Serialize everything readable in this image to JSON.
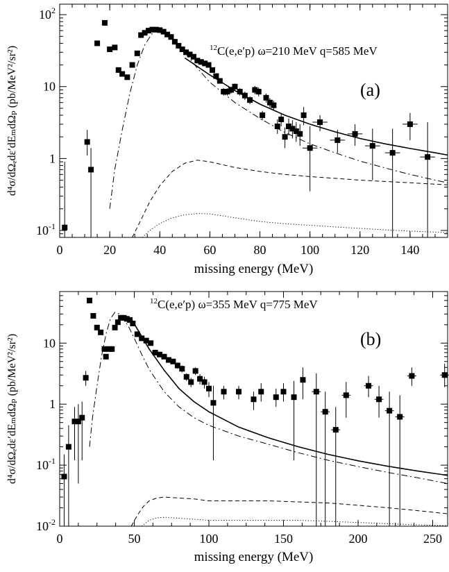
{
  "chart_data": [
    {
      "type": "scatter",
      "panel_label": "(a)",
      "title_nucleus": "12",
      "title_main": "C(e,e′p) ω=210 MeV q=585 MeV",
      "xlabel": "missing energy (MeV)",
      "ylabel": "d⁴σ/dΩₑdε′dEₘdΩₚ (pb/MeV²/sr²)",
      "xlim": [
        0,
        155
      ],
      "ylim": [
        0.08,
        140
      ],
      "log_y": true,
      "x_ticks": [
        0,
        20,
        40,
        60,
        80,
        100,
        120,
        140
      ],
      "x_tick_labels": [
        "0",
        "20",
        "40",
        "60",
        "80",
        "100",
        "120",
        "140"
      ],
      "y_ticks": [
        0.1,
        1,
        10,
        100
      ],
      "y_tick_labels": [
        {
          "base": "10",
          "exp": "-1"
        },
        {
          "base": "1",
          "exp": ""
        },
        {
          "base": "10",
          "exp": ""
        },
        {
          "base": "10",
          "exp": "2"
        }
      ],
      "data_points": [
        {
          "x": 2,
          "y": 0.11,
          "lo": 0.08,
          "hi": 0.9
        },
        {
          "x": 11,
          "y": 1.7,
          "lo": 1.1,
          "hi": 2.5
        },
        {
          "x": 12.5,
          "y": 0.7,
          "lo": 0.08,
          "hi": 1.4
        },
        {
          "x": 15,
          "y": 40
        },
        {
          "x": 18,
          "y": 77
        },
        {
          "x": 20,
          "y": 33
        },
        {
          "x": 22,
          "y": 35
        },
        {
          "x": 23.5,
          "y": 17
        },
        {
          "x": 25,
          "y": 15
        },
        {
          "x": 27,
          "y": 13.5
        },
        {
          "x": 29,
          "y": 20
        },
        {
          "x": 31,
          "y": 29
        },
        {
          "x": 32.5,
          "y": 52
        },
        {
          "x": 34,
          "y": 56
        },
        {
          "x": 35.5,
          "y": 60
        },
        {
          "x": 37,
          "y": 62
        },
        {
          "x": 38.5,
          "y": 62
        },
        {
          "x": 40,
          "y": 61
        },
        {
          "x": 41.5,
          "y": 58
        },
        {
          "x": 43,
          "y": 53
        },
        {
          "x": 44.5,
          "y": 49
        },
        {
          "x": 46,
          "y": 42
        },
        {
          "x": 47.5,
          "y": 37
        },
        {
          "x": 49,
          "y": 33
        },
        {
          "x": 50.5,
          "y": 30
        },
        {
          "x": 52,
          "y": 28
        },
        {
          "x": 53.5,
          "y": 26
        },
        {
          "x": 55,
          "y": 23
        },
        {
          "x": 56.5,
          "y": 22
        },
        {
          "x": 58,
          "y": 21
        },
        {
          "x": 59.5,
          "y": 20
        },
        {
          "x": 61,
          "y": 17
        },
        {
          "x": 62.5,
          "y": 14
        },
        {
          "x": 64,
          "y": 12
        },
        {
          "x": 65.5,
          "y": 8.5,
          "lo": 7.5,
          "hi": 9.5
        },
        {
          "x": 67,
          "y": 8.5,
          "lo": 7.5,
          "hi": 9.5
        },
        {
          "x": 68.5,
          "y": 9,
          "lo": 8,
          "hi": 10
        },
        {
          "x": 70,
          "y": 10,
          "lo": 9,
          "hi": 11
        },
        {
          "x": 72,
          "y": 8.5,
          "lo": 7.5,
          "hi": 9.5
        },
        {
          "x": 74,
          "y": 7.5,
          "lo": 6.5,
          "hi": 8.5
        },
        {
          "x": 76,
          "y": 6.5,
          "lo": 5.7,
          "hi": 7.3
        },
        {
          "x": 78,
          "y": 9,
          "lo": 7.8,
          "hi": 10.2
        },
        {
          "x": 79.5,
          "y": 8.5,
          "lo": 7.3,
          "hi": 9.7
        },
        {
          "x": 81,
          "y": 4,
          "lo": 3.4,
          "hi": 4.6
        },
        {
          "x": 82.5,
          "y": 7,
          "lo": 6,
          "hi": 8
        },
        {
          "x": 84,
          "y": 6,
          "lo": 5.1,
          "hi": 6.9
        },
        {
          "x": 85.5,
          "y": 5.5,
          "lo": 4.6,
          "hi": 6.4
        },
        {
          "x": 87,
          "y": 2.8,
          "lo": 2.2,
          "hi": 3.5
        },
        {
          "x": 88.5,
          "y": 3.5,
          "lo": 2.8,
          "hi": 4.3
        },
        {
          "x": 90,
          "y": 2,
          "lo": 1.4,
          "hi": 2.7
        },
        {
          "x": 91.5,
          "y": 2.8,
          "lo": 2.1,
          "hi": 3.6
        },
        {
          "x": 93,
          "y": 2.6,
          "lo": 1.9,
          "hi": 3.4
        },
        {
          "x": 94.5,
          "y": 2.4,
          "lo": 1.7,
          "hi": 3.2
        },
        {
          "x": 96,
          "y": 2.2,
          "lo": 1.5,
          "hi": 3
        },
        {
          "x": 97.5,
          "y": 4,
          "lo": 2.9,
          "hi": 5.2
        },
        {
          "x": 100,
          "y": 1.4,
          "lo": 0.35,
          "hi": 2.8,
          "xerr": 3
        },
        {
          "x": 104,
          "y": 3.2,
          "lo": 2.4,
          "hi": 4,
          "xerr": 3
        },
        {
          "x": 111,
          "y": 1.8,
          "lo": 1.2,
          "hi": 2.5,
          "xerr": 3
        },
        {
          "x": 118,
          "y": 2.2,
          "lo": 1.5,
          "hi": 3,
          "xerr": 3
        },
        {
          "x": 125,
          "y": 1.5,
          "lo": 0.5,
          "hi": 2.6,
          "xerr": 3
        },
        {
          "x": 133,
          "y": 1.2,
          "lo": 0.08,
          "hi": 2.6,
          "xerr": 3
        },
        {
          "x": 140,
          "y": 3,
          "lo": 1.8,
          "hi": 4.3,
          "xerr": 3
        },
        {
          "x": 147,
          "y": 1.05,
          "lo": 0.08,
          "hi": 3.2,
          "xerr": 3
        }
      ],
      "curves": [
        {
          "style": "solid",
          "x": [
            50,
            60,
            70,
            80,
            90,
            100,
            110,
            120,
            130,
            140,
            150,
            155
          ],
          "y": [
            25,
            14.5,
            8.8,
            5.7,
            4,
            3,
            2.35,
            1.9,
            1.6,
            1.38,
            1.2,
            1.12
          ]
        },
        {
          "style": "dashdot",
          "x": [
            20,
            22,
            25,
            28,
            31,
            34,
            37,
            40,
            43,
            46,
            50,
            55,
            60,
            70,
            80,
            90,
            100,
            110,
            120,
            130,
            140,
            150,
            155
          ],
          "y": [
            0.2,
            0.7,
            2.5,
            8,
            20,
            38,
            55,
            60,
            55,
            45,
            30,
            18,
            11.5,
            6,
            3.6,
            2.3,
            1.6,
            1.2,
            0.92,
            0.74,
            0.6,
            0.5,
            0.46
          ]
        },
        {
          "style": "dashed",
          "x": [
            29,
            32,
            36,
            40,
            45,
            50,
            55,
            60,
            70,
            80,
            90,
            100,
            110,
            120,
            130,
            140,
            150,
            155
          ],
          "y": [
            0.08,
            0.13,
            0.25,
            0.42,
            0.66,
            0.86,
            0.95,
            0.9,
            0.75,
            0.66,
            0.6,
            0.56,
            0.53,
            0.5,
            0.48,
            0.46,
            0.44,
            0.43
          ]
        },
        {
          "style": "dotted",
          "x": [
            33,
            36,
            40,
            45,
            50,
            55,
            60,
            70,
            80,
            90,
            100,
            110,
            120,
            130,
            140,
            150,
            155
          ],
          "y": [
            0.08,
            0.1,
            0.125,
            0.15,
            0.165,
            0.172,
            0.17,
            0.15,
            0.133,
            0.124,
            0.118,
            0.112,
            0.107,
            0.102,
            0.098,
            0.095,
            0.093
          ]
        }
      ]
    },
    {
      "type": "scatter",
      "panel_label": "(b)",
      "title_nucleus": "12",
      "title_main": "C(e,e′p) ω=355 MeV q=775 MeV",
      "xlabel": "missing energy (MeV)",
      "ylabel": "d⁴σ/dΩₑdε′dEₘdΩₚ (pb/MeV²/sr²)",
      "xlim": [
        0,
        260
      ],
      "ylim": [
        0.01,
        70
      ],
      "log_y": true,
      "x_ticks": [
        0,
        50,
        100,
        150,
        200,
        250
      ],
      "x_tick_labels": [
        "0",
        "50",
        "100",
        "150",
        "200",
        "250"
      ],
      "y_ticks": [
        0.01,
        0.1,
        1,
        10
      ],
      "y_tick_labels": [
        {
          "base": "10",
          "exp": "-2"
        },
        {
          "base": "10",
          "exp": "-1"
        },
        {
          "base": "1",
          "exp": ""
        },
        {
          "base": "10",
          "exp": ""
        }
      ],
      "data_points": [
        {
          "x": 3,
          "y": 0.065,
          "lo": 0.01,
          "hi": 0.15
        },
        {
          "x": 6,
          "y": 0.2,
          "lo": 0.01,
          "hi": 0.45
        },
        {
          "x": 10,
          "y": 0.52,
          "lo": 0.12,
          "hi": 0.9
        },
        {
          "x": 12.5,
          "y": 0.52,
          "lo": 0.05,
          "hi": 1.0
        },
        {
          "x": 15,
          "y": 0.6,
          "lo": 0.12,
          "hi": 1.1
        },
        {
          "x": 17.5,
          "y": 2.7,
          "lo": 2.0,
          "hi": 3.5
        },
        {
          "x": 20,
          "y": 50
        },
        {
          "x": 22.5,
          "y": 28
        },
        {
          "x": 25,
          "y": 18
        },
        {
          "x": 27.5,
          "y": 15
        },
        {
          "x": 30,
          "y": 8
        },
        {
          "x": 31,
          "y": 6
        },
        {
          "x": 33,
          "y": 8
        },
        {
          "x": 35,
          "y": 8
        },
        {
          "x": 37,
          "y": 18
        },
        {
          "x": 39,
          "y": 22
        },
        {
          "x": 41,
          "y": 26
        },
        {
          "x": 43,
          "y": 26
        },
        {
          "x": 45,
          "y": 25
        },
        {
          "x": 47,
          "y": 24
        },
        {
          "x": 49,
          "y": 21
        },
        {
          "x": 52,
          "y": 14
        },
        {
          "x": 55,
          "y": 12
        },
        {
          "x": 58,
          "y": 11
        },
        {
          "x": 61,
          "y": 10
        },
        {
          "x": 64,
          "y": 7
        },
        {
          "x": 67,
          "y": 6.5
        },
        {
          "x": 70,
          "y": 6
        },
        {
          "x": 73,
          "y": 5.3
        },
        {
          "x": 76,
          "y": 5
        },
        {
          "x": 79,
          "y": 4.3,
          "lo": 3.8,
          "hi": 4.8
        },
        {
          "x": 82,
          "y": 3.8,
          "lo": 3.3,
          "hi": 4.3
        },
        {
          "x": 85,
          "y": 2.8,
          "lo": 2.4,
          "hi": 3.2
        },
        {
          "x": 88,
          "y": 2.3,
          "lo": 1.9,
          "hi": 2.7
        },
        {
          "x": 91,
          "y": 3.5,
          "lo": 3,
          "hi": 4
        },
        {
          "x": 94,
          "y": 2.6,
          "lo": 2.1,
          "hi": 3.1
        },
        {
          "x": 97,
          "y": 2.3,
          "lo": 1.8,
          "hi": 2.8
        },
        {
          "x": 100,
          "y": 1.8,
          "lo": 1.3,
          "hi": 2.3
        },
        {
          "x": 103,
          "y": 1.05,
          "lo": 0.12,
          "hi": 2.0
        },
        {
          "x": 110,
          "y": 1.6,
          "lo": 1.2,
          "hi": 2.0
        },
        {
          "x": 120,
          "y": 1.6,
          "lo": 1.2,
          "hi": 2.0
        },
        {
          "x": 130,
          "y": 1.2,
          "lo": 0.8,
          "hi": 1.6
        },
        {
          "x": 135,
          "y": 1.6,
          "lo": 1.1,
          "hi": 2.2
        },
        {
          "x": 145,
          "y": 1.3,
          "lo": 0.9,
          "hi": 1.8
        },
        {
          "x": 150,
          "y": 1.6,
          "lo": 1.1,
          "hi": 2.2
        },
        {
          "x": 157,
          "y": 1.3,
          "lo": 0.12,
          "hi": 2.4
        },
        {
          "x": 163,
          "y": 2.5,
          "lo": 1.2,
          "hi": 4.0
        },
        {
          "x": 172,
          "y": 1.6,
          "lo": 0.01,
          "hi": 3.2,
          "xerr": 3
        },
        {
          "x": 178,
          "y": 0.75,
          "lo": 0.01,
          "hi": 1.6,
          "xerr": 3
        },
        {
          "x": 185,
          "y": 0.38,
          "lo": 0.01,
          "hi": 0.9,
          "xerr": 3
        },
        {
          "x": 192,
          "y": 1.4,
          "lo": 0.6,
          "hi": 2.3,
          "xerr": 3
        },
        {
          "x": 207,
          "y": 2,
          "lo": 1.3,
          "hi": 2.9,
          "xerr": 3
        },
        {
          "x": 214,
          "y": 1.2,
          "lo": 0.6,
          "hi": 2.0,
          "xerr": 3
        },
        {
          "x": 221,
          "y": 0.78,
          "lo": 0.01,
          "hi": 1.6,
          "xerr": 3
        },
        {
          "x": 228,
          "y": 0.62,
          "lo": 0.01,
          "hi": 1.4,
          "xerr": 3
        },
        {
          "x": 236,
          "y": 2.9,
          "lo": 2.0,
          "hi": 4.0,
          "xerr": 3
        },
        {
          "x": 258,
          "y": 3,
          "lo": 1.9,
          "hi": 4.6,
          "xerr": 3
        }
      ],
      "curves": [
        {
          "style": "solid",
          "x": [
            48,
            60,
            70,
            80,
            90,
            100,
            120,
            140,
            160,
            180,
            200,
            220,
            240,
            260
          ],
          "y": [
            25,
            8,
            3.6,
            1.8,
            1.1,
            0.75,
            0.42,
            0.28,
            0.2,
            0.15,
            0.118,
            0.096,
            0.08,
            0.068
          ]
        },
        {
          "style": "dashdot",
          "x": [
            20,
            22,
            25,
            28,
            31,
            34,
            37,
            40,
            43,
            46,
            50,
            55,
            60,
            70,
            80,
            90,
            100,
            120,
            140,
            160,
            180,
            200,
            220,
            240,
            260
          ],
          "y": [
            0.2,
            0.6,
            2,
            6,
            14,
            25,
            32,
            30,
            25,
            19,
            12,
            6.5,
            3.7,
            1.6,
            0.9,
            0.6,
            0.45,
            0.3,
            0.22,
            0.16,
            0.12,
            0.095,
            0.076,
            0.062,
            0.05
          ]
        },
        {
          "style": "dashed",
          "x": [
            48,
            52,
            56,
            60,
            65,
            70,
            80,
            90,
            100,
            120,
            140,
            160,
            180,
            200,
            220,
            240,
            260
          ],
          "y": [
            0.01,
            0.015,
            0.021,
            0.026,
            0.029,
            0.03,
            0.029,
            0.028,
            0.026,
            0.026,
            0.026,
            0.025,
            0.024,
            0.022,
            0.02,
            0.018,
            0.016
          ]
        },
        {
          "style": "dotted",
          "x": [
            55,
            60,
            65,
            70,
            80,
            90,
            100,
            120,
            140,
            160,
            180,
            200,
            220,
            240,
            260
          ],
          "y": [
            0.01,
            0.0125,
            0.0137,
            0.014,
            0.0135,
            0.013,
            0.0125,
            0.0125,
            0.0125,
            0.0125,
            0.012,
            0.0115,
            0.011,
            0.0105,
            0.0102
          ]
        }
      ]
    }
  ]
}
